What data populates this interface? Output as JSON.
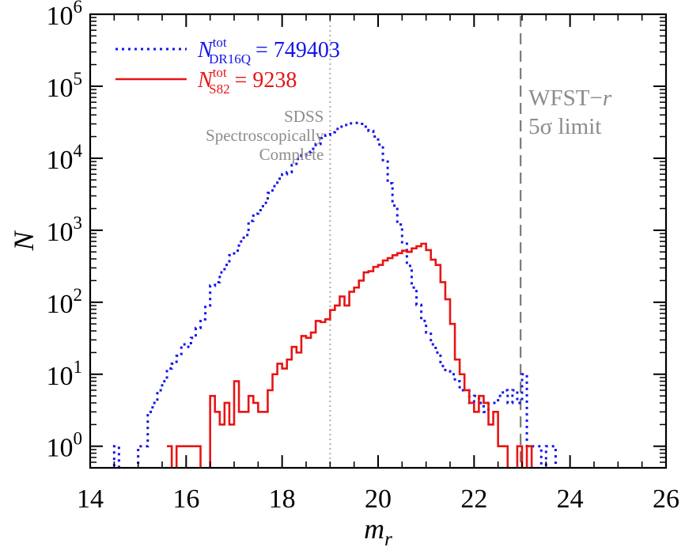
{
  "chart_data": {
    "type": "step-histogram",
    "xlabel": "m_r",
    "ylabel": "N",
    "xlim": [
      14,
      26
    ],
    "ylim_log10": [
      -0.3,
      6.0
    ],
    "yscale": "log",
    "x_ticks": [
      14,
      16,
      18,
      20,
      22,
      24,
      26
    ],
    "y_ticks_exp": [
      0,
      1,
      2,
      3,
      4,
      5,
      6
    ],
    "legend": {
      "position": "top-left",
      "entries": [
        {
          "series": "dr16q",
          "prefix": "N",
          "sup": "tot",
          "sub": "DR16Q",
          "value": "= 749403"
        },
        {
          "series": "s82",
          "prefix": "N",
          "sup": "tot",
          "sub": "S82",
          "value": "= 9238"
        }
      ]
    },
    "series": [
      {
        "id": "dr16q",
        "color": "#1515e8",
        "style": "dotted",
        "bin_width": 0.1,
        "bins_start": 14.0,
        "counts": [
          0,
          0,
          0,
          0,
          0,
          1,
          0,
          0,
          0,
          0,
          1,
          1,
          3,
          4,
          6,
          8,
          12,
          14,
          18,
          26,
          24,
          32,
          44,
          58,
          90,
          170,
          190,
          260,
          330,
          450,
          520,
          700,
          860,
          1350,
          1700,
          1900,
          2400,
          3300,
          4100,
          5200,
          6000,
          6400,
          8000,
          9800,
          11000,
          12200,
          13500,
          15800,
          19000,
          21000,
          23000,
          25500,
          27500,
          29000,
          30500,
          31000,
          30000,
          27500,
          24000,
          20000,
          15500,
          9000,
          4500,
          2200,
          1200,
          650,
          320,
          160,
          92,
          55,
          38,
          26,
          20,
          13,
          11,
          10,
          8,
          6,
          6,
          4,
          5,
          4,
          3,
          4,
          4,
          5,
          6,
          4,
          6,
          4,
          10,
          1,
          1,
          1,
          0,
          1,
          1,
          0,
          0,
          0
        ],
        "start_index": 4
      },
      {
        "id": "s82",
        "color": "#e81414",
        "style": "solid",
        "bin_width": 0.1,
        "bins_start": 14.0,
        "counts": [
          0,
          0,
          0,
          0,
          0,
          0,
          0,
          0,
          0,
          0,
          0,
          0,
          0,
          0,
          0,
          0,
          1,
          0,
          1,
          1,
          1,
          1,
          1,
          0,
          0,
          5,
          3,
          2,
          4,
          2,
          8,
          3,
          3,
          5,
          4,
          3,
          3,
          6,
          10,
          14,
          12,
          16,
          24,
          20,
          34,
          32,
          38,
          55,
          53,
          58,
          78,
          90,
          120,
          90,
          140,
          160,
          200,
          260,
          270,
          310,
          330,
          380,
          410,
          450,
          480,
          520,
          500,
          560,
          600,
          650,
          530,
          390,
          330,
          190,
          110,
          50,
          16,
          10,
          6,
          4,
          3,
          5,
          4,
          2,
          3,
          1,
          1,
          0,
          0,
          1,
          0,
          1,
          0,
          0,
          0,
          0,
          0,
          0,
          0,
          0
        ],
        "start_index": 16
      }
    ],
    "vlines": [
      {
        "x": 19.0,
        "color": "#b4b4b4",
        "style": "dotted",
        "label": [
          "SDSS",
          "Spectroscopically",
          "Complete"
        ],
        "label_side": "left"
      },
      {
        "x": 22.97,
        "color": "#7a7a7a",
        "style": "dashed",
        "label": [
          "WFST−r",
          "5σ limit"
        ],
        "label_side": "right"
      }
    ]
  }
}
